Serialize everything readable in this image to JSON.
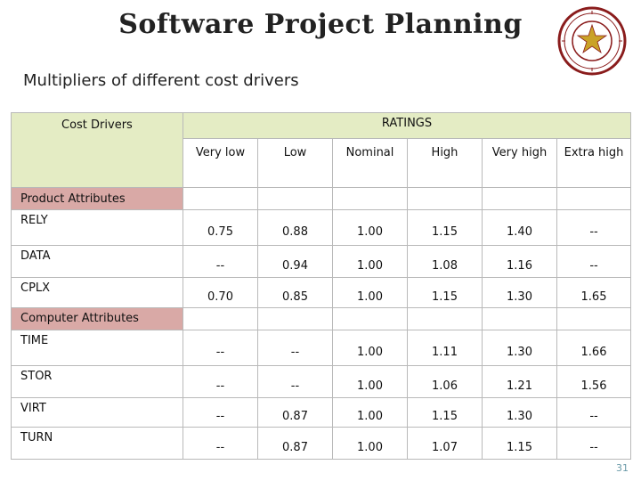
{
  "title": "Software Project Planning",
  "subtitle": "Multipliers of different cost drivers",
  "table": {
    "cost_drivers_header": "Cost Drivers",
    "ratings_header": "RATINGS",
    "rating_labels": [
      "Very low",
      "Low",
      "Nominal",
      "High",
      "Very high",
      "Extra high"
    ],
    "sections": [
      {
        "name": "Product Attributes",
        "rows": [
          {
            "driver": "RELY",
            "values": [
              "0.75",
              "0.88",
              "1.00",
              "1.15",
              "1.40",
              "--"
            ]
          },
          {
            "driver": "DATA",
            "values": [
              "--",
              "0.94",
              "1.00",
              "1.08",
              "1.16",
              "--"
            ]
          },
          {
            "driver": "CPLX",
            "values": [
              "0.70",
              "0.85",
              "1.00",
              "1.15",
              "1.30",
              "1.65"
            ]
          }
        ]
      },
      {
        "name": "Computer Attributes",
        "rows": [
          {
            "driver": "TIME",
            "values": [
              "--",
              "--",
              "1.00",
              "1.11",
              "1.30",
              "1.66"
            ]
          },
          {
            "driver": "STOR",
            "values": [
              "--",
              "--",
              "1.00",
              "1.06",
              "1.21",
              "1.56"
            ]
          },
          {
            "driver": "VIRT",
            "values": [
              "--",
              "0.87",
              "1.00",
              "1.15",
              "1.30",
              "--"
            ]
          },
          {
            "driver": "TURN",
            "values": [
              "--",
              "0.87",
              "1.00",
              "1.07",
              "1.15",
              "--"
            ]
          }
        ]
      }
    ]
  },
  "page_number": "31",
  "colors": {
    "header_bg": "#e4ecc4",
    "section_bg": "#d9a9a6",
    "logo_ring": "#8a1c1c"
  }
}
